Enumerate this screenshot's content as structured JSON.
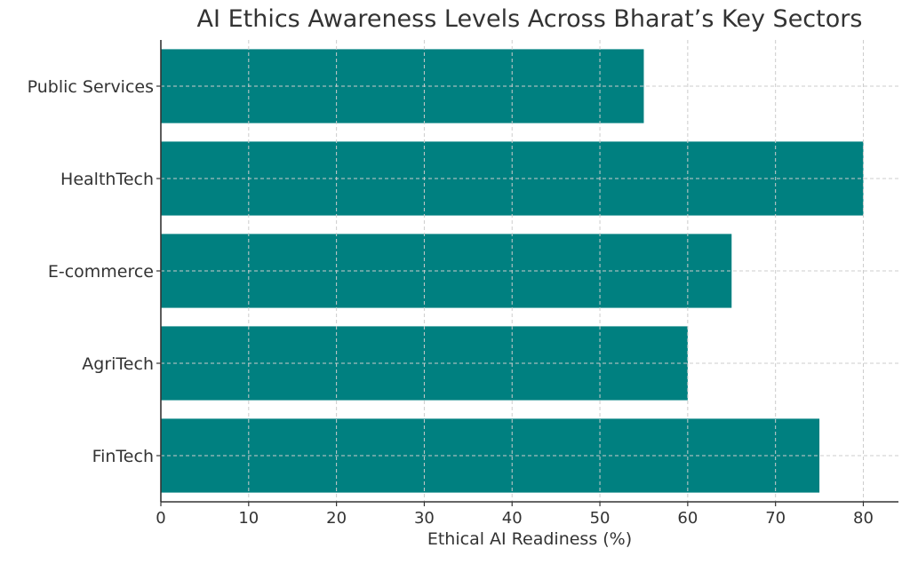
{
  "chart_data": {
    "type": "bar",
    "orientation": "horizontal",
    "title": "AI Ethics Awareness Levels Across Bharat’s Key Sectors",
    "xlabel": "Ethical AI Readiness (%)",
    "ylabel": "",
    "categories": [
      "FinTech",
      "AgriTech",
      "E-commerce",
      "HealthTech",
      "Public Services"
    ],
    "values": [
      75,
      60,
      65,
      80,
      55
    ],
    "xlim": [
      0,
      84
    ],
    "xticks": [
      0,
      10,
      20,
      30,
      40,
      50,
      60,
      70,
      80
    ],
    "grid": true,
    "legend": null,
    "bar_color": "#008080"
  },
  "colors": {
    "bar": "#008080",
    "grid": "#cccccc",
    "axis": "#333333",
    "text": "#333333"
  }
}
